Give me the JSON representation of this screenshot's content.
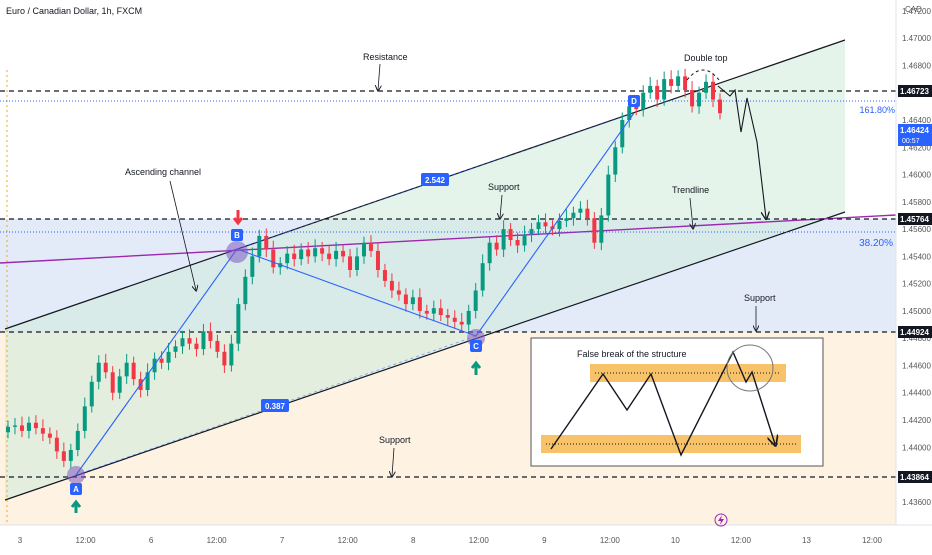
{
  "header": {
    "symbol_title": "Euro / Canadian Dollar, 1h, FXCM",
    "currency": "CAD"
  },
  "price_tags": {
    "resistance": "1.46723",
    "current_price": "1.46424",
    "current_countdown": "00:57",
    "mid_level": "1.45764",
    "support_level": "1.44924",
    "low_level": "1.43864"
  },
  "fib_labels": {
    "upper": "161.80%",
    "lower": "38.20%"
  },
  "annotations": {
    "resistance": "Resistance",
    "double_top": "Double top",
    "ascending_channel": "Ascending channel",
    "support_mid": "Support",
    "trendline": "Trendline",
    "support_right": "Support",
    "support_bottom": "Support",
    "false_break": "False break of the structure"
  },
  "ratios": {
    "upper": "2.542",
    "lower": "0.387"
  },
  "pattern_points": {
    "a": "A",
    "b": "B",
    "c": "C",
    "d": "D"
  },
  "colors": {
    "bull": "#089981",
    "bear": "#f23645",
    "channel_fill": "#d9f0e3",
    "range_fill": "#d6dff2",
    "bottom_fill": "#fdebd3",
    "trendline": "#9c27b0",
    "pattern": "#2962ff",
    "false_break_box": "#f7b74d"
  },
  "chart_data": {
    "type": "candlestick",
    "title": "Euro / Canadian Dollar, 1h, FXCM",
    "x_ticks": [
      "3",
      "12:00",
      "6",
      "12:00",
      "7",
      "12:00",
      "8",
      "12:00",
      "9",
      "12:00",
      "10",
      "12:00",
      "13",
      "12:00"
    ],
    "y_ticks": [
      "1.47200",
      "1.47000",
      "1.46800",
      "1.46600",
      "1.46400",
      "1.46200",
      "1.46000",
      "1.45800",
      "1.45600",
      "1.45400",
      "1.45200",
      "1.45000",
      "1.44800",
      "1.44600",
      "1.44400",
      "1.44200",
      "1.44000",
      "1.43800",
      "1.43600",
      "1.43400"
    ],
    "ylim": [
      1.4343,
      1.4728
    ],
    "levels": [
      1.46723,
      1.45764,
      1.44924,
      1.43864
    ],
    "pattern": {
      "A": 1.4387,
      "B": 1.4553,
      "C": 1.449,
      "D": 1.4667
    },
    "series_close": [
      1.4415,
      1.4416,
      1.4412,
      1.4418,
      1.4414,
      1.441,
      1.4407,
      1.4397,
      1.439,
      1.4398,
      1.4412,
      1.443,
      1.4448,
      1.4462,
      1.4455,
      1.444,
      1.4452,
      1.4462,
      1.445,
      1.4442,
      1.4455,
      1.4465,
      1.4462,
      1.447,
      1.4474,
      1.448,
      1.4476,
      1.4472,
      1.4485,
      1.4478,
      1.447,
      1.446,
      1.4476,
      1.4505,
      1.4525,
      1.454,
      1.4555,
      1.4545,
      1.4532,
      1.4535,
      1.4542,
      1.4538,
      1.4545,
      1.454,
      1.4546,
      1.4542,
      1.4538,
      1.4544,
      1.454,
      1.453,
      1.454,
      1.455,
      1.4544,
      1.453,
      1.4522,
      1.4515,
      1.4512,
      1.4505,
      1.451,
      1.45,
      1.4498,
      1.4502,
      1.4497,
      1.4495,
      1.4492,
      1.449,
      1.45,
      1.4515,
      1.4535,
      1.455,
      1.4545,
      1.456,
      1.4552,
      1.4548,
      1.4556,
      1.456,
      1.4565,
      1.4562,
      1.456,
      1.4566,
      1.4568,
      1.4572,
      1.4575,
      1.4568,
      1.455,
      1.457,
      1.46,
      1.462,
      1.464,
      1.465,
      1.4648,
      1.466,
      1.4665,
      1.4655,
      1.467,
      1.4665,
      1.4672,
      1.4662,
      1.465,
      1.466,
      1.4668,
      1.4655,
      1.4645
    ]
  }
}
